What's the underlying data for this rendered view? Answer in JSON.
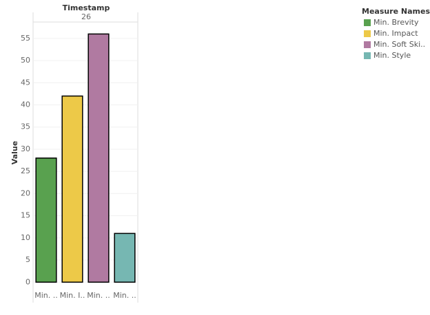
{
  "chart_data": {
    "type": "bar",
    "header_title": "Timestamp",
    "header_value": "26",
    "y_label": "Value",
    "categories": [
      "Min. ..",
      "Min. I..",
      "Min. ..",
      "Min. .."
    ],
    "values": [
      28,
      42,
      56,
      11
    ],
    "colors": [
      "#59a14f",
      "#edc948",
      "#b07aa1",
      "#76b7b2"
    ],
    "ylim": [
      -1.2,
      58.7
    ],
    "yticks": [
      0,
      5,
      10,
      15,
      20,
      25,
      30,
      35,
      40,
      45,
      50,
      55
    ],
    "grid": true,
    "legend": {
      "title": "Measure Names",
      "position": "top-right",
      "items": [
        "Min. Brevity",
        "Min. Impact",
        "Min. Soft Ski..",
        "Min. Style"
      ]
    }
  }
}
